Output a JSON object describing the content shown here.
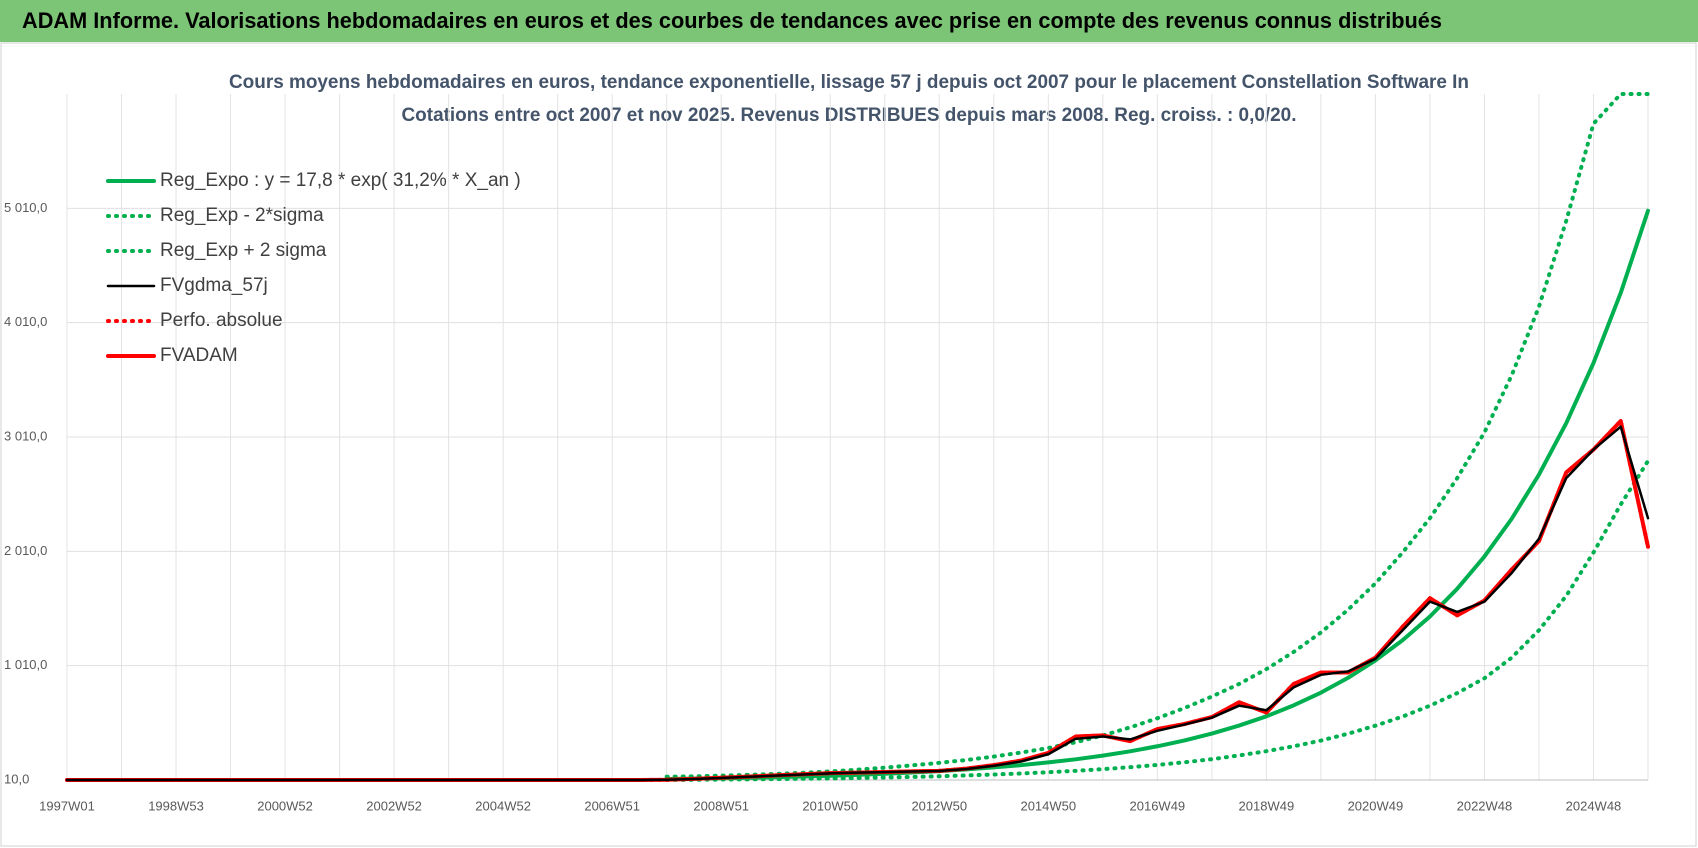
{
  "header": {
    "title": "ADAM Informe. Valorisations hebdomadaires en euros et des courbes de tendances avec prise en compte des revenus connus distribués"
  },
  "chart_data": {
    "type": "line",
    "title": "Cours moyens hebdomadaires en euros, tendance exponentielle, lissage 57 j depuis oct 2007 pour le placement Constellation Software In",
    "subtitle": "Cotations entre oct 2007 et nov 2025. Revenus DISTRIBUES depuis mars 2008. Reg. croiss. : 0,0/20.",
    "categories": [
      "1997W01",
      null,
      null,
      null,
      "1998W53",
      null,
      null,
      null,
      "2000W52",
      null,
      null,
      null,
      "2002W52",
      null,
      null,
      null,
      "2004W52",
      null,
      null,
      null,
      "2006W51",
      null,
      null,
      null,
      "2008W51",
      null,
      null,
      null,
      "2010W50",
      null,
      null,
      null,
      "2012W50",
      null,
      null,
      null,
      "2014W50",
      null,
      null,
      null,
      "2016W49",
      null,
      null,
      null,
      "2018W49",
      null,
      null,
      null,
      "2020W49",
      null,
      null,
      null,
      "2022W48",
      null,
      null,
      null,
      "2024W48",
      null,
      null
    ],
    "ylim": [
      10,
      6010
    ],
    "yticks": [
      {
        "value": 10,
        "label": "10,0"
      },
      {
        "value": 1010,
        "label": "1 010,0"
      },
      {
        "value": 2010,
        "label": "2 010,0"
      },
      {
        "value": 3010,
        "label": "3 010,0"
      },
      {
        "value": 4010,
        "label": "4 010,0"
      },
      {
        "value": 5010,
        "label": "5 010,0"
      }
    ],
    "grid": true,
    "legend": "upper-left",
    "series": [
      {
        "name": "Reg_Expo : y = 17,8 * exp( 31,2% *  X_an )",
        "color": "#00b050",
        "line_style": "solid",
        "values": [
          null,
          null,
          null,
          null,
          null,
          null,
          null,
          null,
          null,
          null,
          null,
          null,
          null,
          null,
          null,
          null,
          null,
          null,
          null,
          null,
          null,
          null,
          18.7,
          21.8,
          25.5,
          29.7,
          34.7,
          40.5,
          47.3,
          55.3,
          64.6,
          75.4,
          88.1,
          103,
          120,
          140,
          164,
          191,
          223,
          261,
          305,
          356,
          416,
          486,
          567,
          663,
          774,
          904,
          1056,
          1233,
          1440,
          1682,
          1965,
          2295,
          2681,
          3131,
          3657,
          4271,
          4989
        ]
      },
      {
        "name": "Reg_Exp - 2*sigma",
        "color": "#00b050",
        "line_style": "dotted",
        "values": [
          null,
          null,
          null,
          null,
          null,
          null,
          null,
          null,
          null,
          null,
          null,
          null,
          null,
          null,
          null,
          null,
          null,
          null,
          null,
          null,
          null,
          null,
          10,
          12,
          14,
          16,
          18,
          21,
          24,
          28,
          32,
          37,
          43,
          50,
          58,
          67,
          78,
          90,
          105,
          122,
          142,
          165,
          192,
          225,
          262,
          305,
          355,
          415,
          485,
          565,
          660,
          770,
          900,
          1080,
          1320,
          1620,
          2000,
          2420,
          2800
        ]
      },
      {
        "name": "Reg_Exp + 2 sigma",
        "color": "#00b050",
        "line_style": "dotted",
        "values": [
          null,
          null,
          null,
          null,
          null,
          null,
          null,
          null,
          null,
          null,
          null,
          null,
          null,
          null,
          null,
          null,
          null,
          null,
          null,
          null,
          null,
          null,
          38,
          42,
          48,
          55,
          63,
          73,
          85,
          100,
          118,
          138,
          160,
          185,
          215,
          250,
          290,
          340,
          400,
          470,
          550,
          640,
          740,
          850,
          980,
          1130,
          1300,
          1500,
          1730,
          2000,
          2300,
          2650,
          3050,
          3550,
          4150,
          4900,
          5750,
          6010,
          6010
        ]
      },
      {
        "name": "FVgdma_57j",
        "color": "#000000",
        "line_style": "solid",
        "values": [
          10,
          10,
          10,
          10,
          10,
          10,
          10,
          10,
          10,
          10,
          10,
          10,
          10,
          10,
          10,
          10,
          10,
          10,
          10,
          10,
          10,
          10,
          12,
          19,
          28,
          38,
          48,
          58,
          68,
          74,
          79,
          84,
          89,
          106,
          135,
          172,
          235,
          370,
          390,
          365,
          440,
          495,
          555,
          660,
          620,
          820,
          930,
          960,
          1070,
          1320,
          1570,
          1480,
          1570,
          1820,
          2120,
          2650,
          2900,
          3100,
          2300
        ]
      },
      {
        "name": "Perfo. absolue",
        "color": "#ff0000",
        "line_style": "dotted",
        "values": [
          10,
          10,
          10,
          10,
          10,
          10,
          10,
          10,
          10,
          10,
          10,
          10,
          10,
          10,
          10,
          10,
          10,
          10,
          10,
          10,
          10,
          10,
          12,
          20,
          30,
          40,
          50,
          60,
          70,
          75,
          80,
          85,
          90,
          110,
          140,
          180,
          247,
          390,
          400,
          350,
          455,
          500,
          560,
          690,
          600,
          850,
          950,
          950,
          1080,
          1350,
          1600,
          1450,
          1580,
          1850,
          2100,
          2700,
          2900,
          3150,
          2050
        ]
      },
      {
        "name": "FVADAM",
        "color": "#ff0000",
        "line_style": "solid",
        "values": [
          10,
          10,
          10,
          10,
          10,
          10,
          10,
          10,
          10,
          10,
          10,
          10,
          10,
          10,
          10,
          10,
          10,
          10,
          10,
          10,
          10,
          10,
          12,
          20,
          30,
          40,
          50,
          60,
          70,
          75,
          80,
          85,
          90,
          110,
          140,
          180,
          247,
          390,
          400,
          350,
          455,
          500,
          560,
          690,
          600,
          850,
          950,
          950,
          1080,
          1350,
          1600,
          1450,
          1580,
          1850,
          2100,
          2700,
          2900,
          3150,
          2050
        ]
      }
    ]
  }
}
